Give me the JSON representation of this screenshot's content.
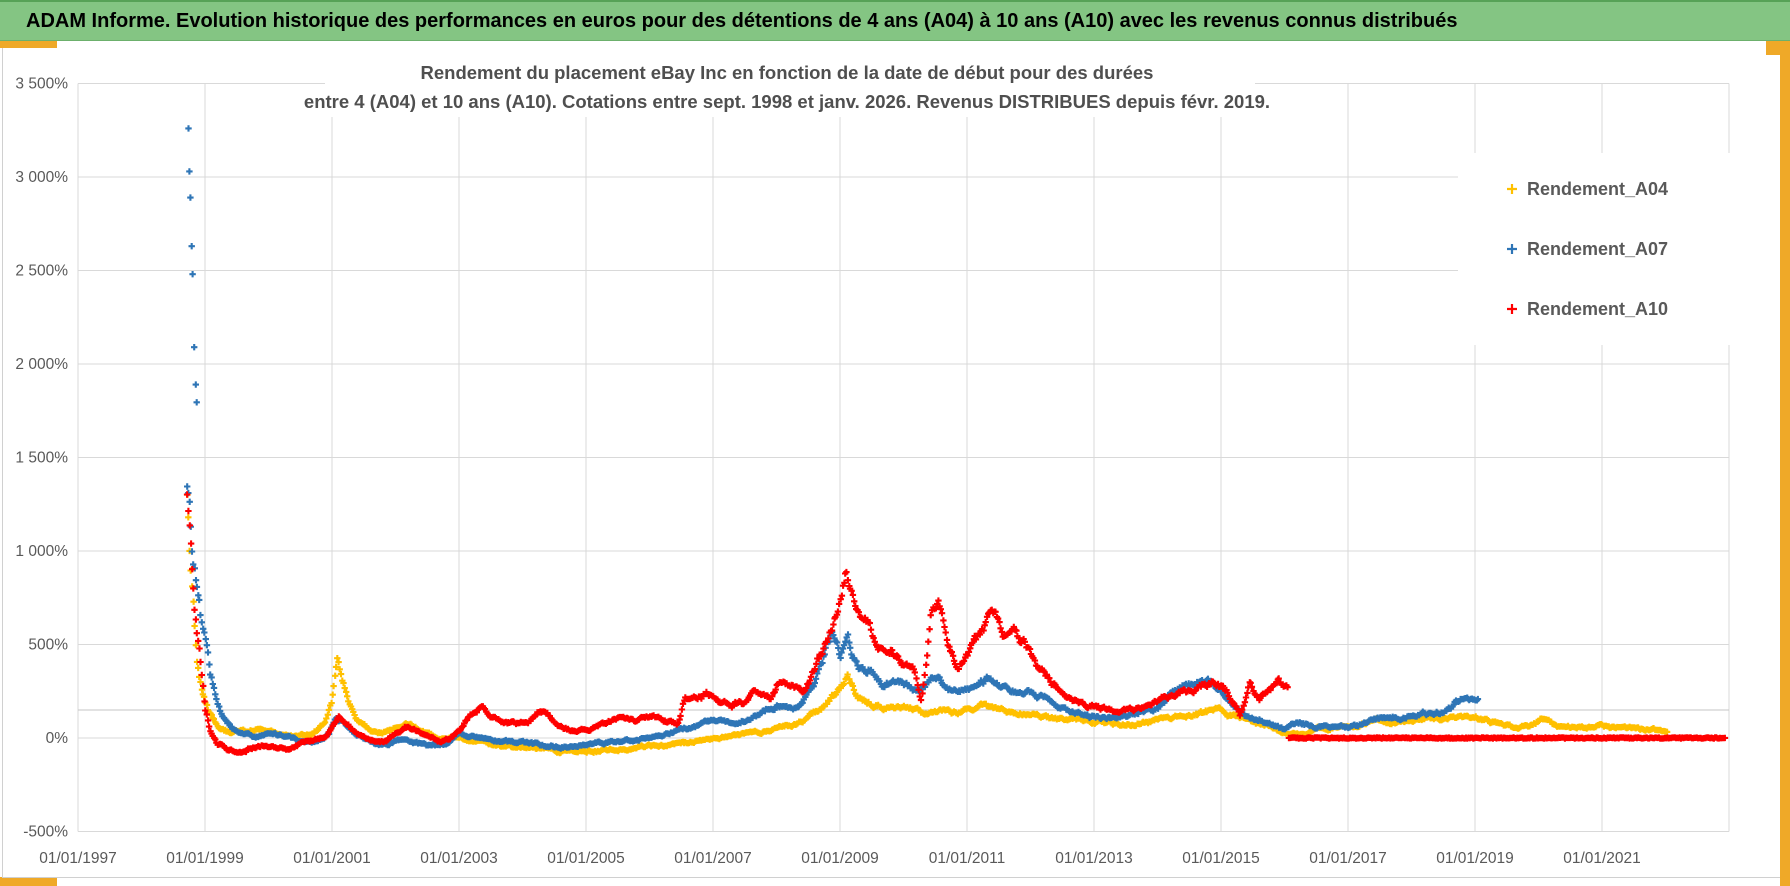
{
  "header": {
    "title": "ADAM Informe. Evolution historique des performances en euros pour des détentions de 4 ans (A04) à 10 ans (A10) avec les revenus connus distribués",
    "bar_color": "#84c583",
    "accent_color": "#efa928"
  },
  "chart_data": {
    "type": "scatter",
    "title_line1": "Rendement du placement eBay Inc en fonction de la date de début pour des durées",
    "title_line2": "entre 4 (A04) et 10 ans (A10). Cotations entre sept. 1998 et janv. 2026. Revenus DISTRIBUES depuis févr. 2019.",
    "marker": "plus",
    "grid": true,
    "x_ticks": [
      "01/01/1997",
      "01/01/1999",
      "01/01/2001",
      "01/01/2003",
      "01/01/2005",
      "01/01/2007",
      "01/01/2009",
      "01/01/2011",
      "01/01/2013",
      "01/01/2015",
      "01/01/2017",
      "01/01/2019",
      "01/01/2021"
    ],
    "x_tick_years": [
      1997,
      1999,
      2001,
      2003,
      2005,
      2007,
      2009,
      2011,
      2013,
      2015,
      2017,
      2019,
      2021
    ],
    "x_range_years": [
      1997,
      2023
    ],
    "y_ticks": [
      "3 500%",
      "3 000%",
      "2 500%",
      "2 000%",
      "1 500%",
      "1 000%",
      "500%",
      "0%",
      "-500%"
    ],
    "y_tick_values": [
      3500,
      3000,
      2500,
      2000,
      1500,
      1000,
      500,
      0,
      -500
    ],
    "ylim": [
      -500,
      3500
    ],
    "axis_cross_value": 150,
    "legend_position": "top-right",
    "legend": [
      {
        "label": "Rendement_A04",
        "color": "#FFC000"
      },
      {
        "label": "Rendement_A07",
        "color": "#2E75B6"
      },
      {
        "label": "Rendement_A10",
        "color": "#FF0000"
      }
    ],
    "sampling": "weekly",
    "series": [
      {
        "name": "Rendement_A04",
        "color": "#FFC000",
        "seed": 11,
        "anchors": [
          [
            1998.72,
            1250
          ],
          [
            1998.76,
            1000
          ],
          [
            1998.8,
            780
          ],
          [
            1998.84,
            560
          ],
          [
            1998.88,
            420
          ],
          [
            1998.95,
            300
          ],
          [
            1999,
            230
          ],
          [
            1999.08,
            140
          ],
          [
            1999.15,
            90
          ],
          [
            1999.25,
            55
          ],
          [
            1999.4,
            30
          ],
          [
            1999.6,
            35
          ],
          [
            1999.8,
            45
          ],
          [
            2000,
            35
          ],
          [
            2000.2,
            15
          ],
          [
            2000.45,
            5
          ],
          [
            2000.7,
            25
          ],
          [
            2000.9,
            90
          ],
          [
            2001,
            200
          ],
          [
            2001.08,
            420
          ],
          [
            2001.15,
            340
          ],
          [
            2001.25,
            210
          ],
          [
            2001.4,
            90
          ],
          [
            2001.6,
            35
          ],
          [
            2001.8,
            25
          ],
          [
            2002,
            55
          ],
          [
            2002.2,
            75
          ],
          [
            2002.45,
            30
          ],
          [
            2002.7,
            -5
          ],
          [
            2003,
            5
          ],
          [
            2003.3,
            -20
          ],
          [
            2003.7,
            -45
          ],
          [
            2004.1,
            -55
          ],
          [
            2004.5,
            -65
          ],
          [
            2005,
            -70
          ],
          [
            2005.5,
            -60
          ],
          [
            2006,
            -45
          ],
          [
            2006.5,
            -30
          ],
          [
            2007,
            -5
          ],
          [
            2007.4,
            15
          ],
          [
            2007.8,
            35
          ],
          [
            2008.1,
            60
          ],
          [
            2008.4,
            90
          ],
          [
            2008.7,
            160
          ],
          [
            2008.9,
            230
          ],
          [
            2009.05,
            300
          ],
          [
            2009.12,
            345
          ],
          [
            2009.25,
            235
          ],
          [
            2009.5,
            185
          ],
          [
            2009.75,
            155
          ],
          [
            2010,
            170
          ],
          [
            2010.3,
            130
          ],
          [
            2010.55,
            150
          ],
          [
            2010.8,
            130
          ],
          [
            2011,
            150
          ],
          [
            2011.25,
            185
          ],
          [
            2011.5,
            150
          ],
          [
            2011.75,
            135
          ],
          [
            2012,
            120
          ],
          [
            2012.35,
            100
          ],
          [
            2012.7,
            95
          ],
          [
            2013,
            95
          ],
          [
            2013.4,
            75
          ],
          [
            2013.8,
            85
          ],
          [
            2014.2,
            105
          ],
          [
            2014.6,
            125
          ],
          [
            2014.95,
            155
          ],
          [
            2015.2,
            115
          ],
          [
            2015.5,
            85
          ],
          [
            2015.8,
            65
          ],
          [
            2016.05,
            35
          ],
          [
            2016.25,
            20
          ],
          [
            2016.5,
            45
          ],
          [
            2016.8,
            60
          ],
          [
            2017.1,
            75
          ],
          [
            2017.5,
            90
          ],
          [
            2017.9,
            95
          ],
          [
            2018.3,
            105
          ],
          [
            2018.7,
            110
          ],
          [
            2019,
            115
          ],
          [
            2019.3,
            80
          ],
          [
            2019.6,
            55
          ],
          [
            2019.9,
            65
          ],
          [
            2020.1,
            110
          ],
          [
            2020.3,
            45
          ],
          [
            2020.6,
            55
          ],
          [
            2020.9,
            65
          ],
          [
            2021.2,
            50
          ],
          [
            2021.5,
            55
          ],
          [
            2021.8,
            45
          ],
          [
            2022.03,
            35
          ]
        ]
      },
      {
        "name": "Rendement_A07",
        "color": "#2E75B6",
        "seed": 22,
        "anchors": [
          [
            1998.72,
            1290
          ],
          [
            1998.76,
            1150
          ],
          [
            1998.8,
            980
          ],
          [
            1998.85,
            830
          ],
          [
            1998.9,
            700
          ],
          [
            1998.95,
            560
          ],
          [
            1999,
            480
          ],
          [
            1999.06,
            360
          ],
          [
            1999.12,
            280
          ],
          [
            1999.2,
            190
          ],
          [
            1999.3,
            120
          ],
          [
            1999.45,
            50
          ],
          [
            1999.6,
            15
          ],
          [
            1999.8,
            5
          ],
          [
            2000,
            30
          ],
          [
            2000.25,
            10
          ],
          [
            2000.5,
            -15
          ],
          [
            2000.75,
            -20
          ],
          [
            2000.95,
            20
          ],
          [
            2001.05,
            110
          ],
          [
            2001.15,
            90
          ],
          [
            2001.3,
            40
          ],
          [
            2001.5,
            0
          ],
          [
            2001.7,
            -30
          ],
          [
            2001.9,
            -40
          ],
          [
            2002.1,
            -10
          ],
          [
            2002.3,
            -25
          ],
          [
            2002.55,
            -45
          ],
          [
            2002.8,
            -30
          ],
          [
            2003,
            20
          ],
          [
            2003.3,
            5
          ],
          [
            2003.6,
            -15
          ],
          [
            2004,
            -25
          ],
          [
            2004.4,
            -45
          ],
          [
            2004.8,
            -45
          ],
          [
            2005.2,
            -30
          ],
          [
            2005.6,
            -20
          ],
          [
            2006,
            5
          ],
          [
            2006.3,
            25
          ],
          [
            2006.6,
            55
          ],
          [
            2007,
            90
          ],
          [
            2007.3,
            80
          ],
          [
            2007.6,
            105
          ],
          [
            2008,
            175
          ],
          [
            2008.3,
            160
          ],
          [
            2008.6,
            290
          ],
          [
            2008.87,
            560
          ],
          [
            2009,
            430
          ],
          [
            2009.12,
            505
          ],
          [
            2009.3,
            350
          ],
          [
            2009.5,
            375
          ],
          [
            2009.7,
            295
          ],
          [
            2010,
            305
          ],
          [
            2010.25,
            240
          ],
          [
            2010.5,
            320
          ],
          [
            2010.7,
            260
          ],
          [
            2011,
            270
          ],
          [
            2011.3,
            320
          ],
          [
            2011.5,
            295
          ],
          [
            2011.8,
            240
          ],
          [
            2012,
            240
          ],
          [
            2012.3,
            195
          ],
          [
            2012.7,
            135
          ],
          [
            2013,
            110
          ],
          [
            2013.4,
            110
          ],
          [
            2014,
            165
          ],
          [
            2014.4,
            280
          ],
          [
            2014.8,
            325
          ],
          [
            2015.1,
            190
          ],
          [
            2015.4,
            115
          ],
          [
            2015.7,
            95
          ],
          [
            2016,
            45
          ],
          [
            2016.2,
            95
          ],
          [
            2016.5,
            60
          ],
          [
            2016.8,
            55
          ],
          [
            2017,
            60
          ],
          [
            2017.3,
            80
          ],
          [
            2017.6,
            110
          ],
          [
            2018,
            120
          ],
          [
            2018.3,
            135
          ],
          [
            2018.6,
            160
          ],
          [
            2018.85,
            245
          ],
          [
            2019,
            225
          ],
          [
            2019.05,
            215
          ]
        ],
        "outliers": [
          [
            1998.74,
            3260
          ],
          [
            1998.755,
            3030
          ],
          [
            1998.77,
            2890
          ],
          [
            1998.79,
            2630
          ],
          [
            1998.805,
            2480
          ],
          [
            1998.83,
            2090
          ],
          [
            1998.855,
            1890
          ],
          [
            1998.87,
            1795
          ]
        ]
      },
      {
        "name": "Rendement_A10",
        "color": "#FF0000",
        "seed": 33,
        "anchors": [
          [
            1998.72,
            1250
          ],
          [
            1998.76,
            1080
          ],
          [
            1998.8,
            900
          ],
          [
            1998.84,
            700
          ],
          [
            1998.88,
            520
          ],
          [
            1998.93,
            380
          ],
          [
            1999,
            150
          ],
          [
            1999.1,
            20
          ],
          [
            1999.2,
            -30
          ],
          [
            1999.35,
            -60
          ],
          [
            1999.5,
            -70
          ],
          [
            1999.7,
            -55
          ],
          [
            1999.9,
            -35
          ],
          [
            2000.1,
            -45
          ],
          [
            2000.3,
            -55
          ],
          [
            2000.5,
            -30
          ],
          [
            2000.7,
            -15
          ],
          [
            2000.9,
            10
          ],
          [
            2001,
            70
          ],
          [
            2001.1,
            120
          ],
          [
            2001.25,
            70
          ],
          [
            2001.4,
            20
          ],
          [
            2001.55,
            -10
          ],
          [
            2001.7,
            -25
          ],
          [
            2001.85,
            -15
          ],
          [
            2002,
            25
          ],
          [
            2002.15,
            60
          ],
          [
            2002.3,
            40
          ],
          [
            2002.5,
            5
          ],
          [
            2002.7,
            -15
          ],
          [
            2002.85,
            -5
          ],
          [
            2003,
            45
          ],
          [
            2003.2,
            130
          ],
          [
            2003.35,
            160
          ],
          [
            2003.5,
            120
          ],
          [
            2003.7,
            85
          ],
          [
            2003.9,
            75
          ],
          [
            2004.1,
            95
          ],
          [
            2004.25,
            145
          ],
          [
            2004.4,
            120
          ],
          [
            2004.6,
            60
          ],
          [
            2004.8,
            35
          ],
          [
            2005,
            40
          ],
          [
            2005.2,
            65
          ],
          [
            2005.5,
            105
          ],
          [
            2005.8,
            90
          ],
          [
            2006,
            115
          ],
          [
            2006.2,
            95
          ],
          [
            2006.45,
            80
          ],
          [
            2006.56,
            225
          ],
          [
            2006.7,
            210
          ],
          [
            2006.9,
            230
          ],
          [
            2007.1,
            195
          ],
          [
            2007.3,
            175
          ],
          [
            2007.5,
            185
          ],
          [
            2007.7,
            245
          ],
          [
            2007.9,
            200
          ],
          [
            2008.05,
            310
          ],
          [
            2008.25,
            280
          ],
          [
            2008.45,
            240
          ],
          [
            2008.65,
            420
          ],
          [
            2008.87,
            565
          ],
          [
            2009,
            700
          ],
          [
            2009.1,
            860
          ],
          [
            2009.18,
            750
          ],
          [
            2009.3,
            620
          ],
          [
            2009.45,
            635
          ],
          [
            2009.6,
            455
          ],
          [
            2009.8,
            475
          ],
          [
            2010,
            420
          ],
          [
            2010.15,
            365
          ],
          [
            2010.28,
            200
          ],
          [
            2010.45,
            690
          ],
          [
            2010.55,
            700
          ],
          [
            2010.7,
            490
          ],
          [
            2010.85,
            385
          ],
          [
            2011,
            455
          ],
          [
            2011.2,
            525
          ],
          [
            2011.35,
            660
          ],
          [
            2011.45,
            690
          ],
          [
            2011.6,
            545
          ],
          [
            2011.75,
            545
          ],
          [
            2011.9,
            510
          ],
          [
            2012.1,
            390
          ],
          [
            2012.4,
            275
          ],
          [
            2012.7,
            205
          ],
          [
            2013,
            170
          ],
          [
            2013.3,
            150
          ],
          [
            2013.6,
            140
          ],
          [
            2014,
            190
          ],
          [
            2014.3,
            240
          ],
          [
            2014.6,
            260
          ],
          [
            2014.9,
            310
          ],
          [
            2015.1,
            260
          ],
          [
            2015.3,
            125
          ],
          [
            2015.45,
            275
          ],
          [
            2015.6,
            205
          ],
          [
            2015.75,
            245
          ],
          [
            2015.9,
            300
          ],
          [
            2016.05,
            260
          ]
        ],
        "zero_segment": [
          2016.07,
          2022.94
        ]
      }
    ],
    "colors": {
      "gridline": "#d9d9d9",
      "axis_text": "#595959",
      "plot_bg": "#ffffff"
    }
  }
}
